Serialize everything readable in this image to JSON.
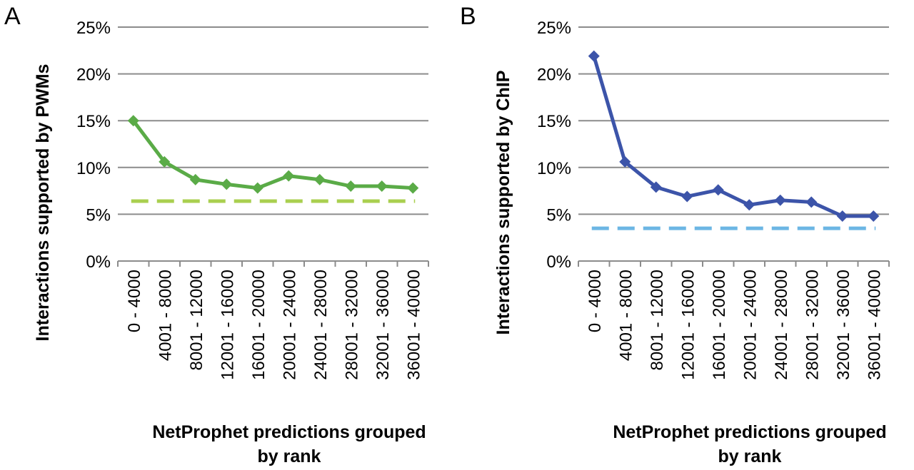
{
  "chart_data": [
    {
      "panel_label": "A",
      "type": "line",
      "ylabel": "Interactions supported by PWMs",
      "xlabel_lines": [
        "NetProphet predictions grouped",
        "by rank"
      ],
      "categories": [
        "0 - 4000",
        "4001 - 8000",
        "8001 - 12000",
        "12001 - 16000",
        "16001 - 20000",
        "20001 - 24000",
        "24001 - 28000",
        "28001 - 32000",
        "32001 - 36000",
        "36001 - 40000"
      ],
      "yticks": [
        "0%",
        "5%",
        "10%",
        "15%",
        "20%",
        "25%"
      ],
      "ylim": [
        0,
        25
      ],
      "grid": true,
      "series": [
        {
          "values": [
            15.0,
            10.6,
            8.7,
            8.2,
            7.8,
            9.1,
            8.7,
            8.0,
            8.0,
            7.8
          ],
          "color": "#5aab47",
          "style": "solid",
          "markers": true
        },
        {
          "values": [
            6.4,
            6.4,
            6.4,
            6.4,
            6.4,
            6.4,
            6.4,
            6.4,
            6.4,
            6.4
          ],
          "color": "#a9cf4f",
          "style": "dashed",
          "markers": false
        }
      ]
    },
    {
      "panel_label": "B",
      "type": "line",
      "ylabel": "Interactions supported by ChIP",
      "xlabel_lines": [
        "NetProphet predictions grouped",
        "by rank"
      ],
      "categories": [
        "0 - 4000",
        "4001 - 8000",
        "8001 - 12000",
        "12001 - 16000",
        "16001 - 20000",
        "20001 - 24000",
        "24001 - 28000",
        "28001 - 32000",
        "32001 - 36000",
        "36001 - 40000"
      ],
      "yticks": [
        "0%",
        "5%",
        "10%",
        "15%",
        "20%",
        "25%"
      ],
      "ylim": [
        0,
        25
      ],
      "grid": true,
      "series": [
        {
          "values": [
            21.9,
            10.6,
            7.9,
            6.9,
            7.6,
            6.0,
            6.5,
            6.3,
            4.8,
            4.8
          ],
          "color": "#3c54a9",
          "style": "solid",
          "markers": true
        },
        {
          "values": [
            3.5,
            3.5,
            3.5,
            3.5,
            3.5,
            3.5,
            3.5,
            3.5,
            3.5,
            3.5
          ],
          "color": "#6cb6e4",
          "style": "dashed",
          "markers": false
        }
      ]
    }
  ]
}
